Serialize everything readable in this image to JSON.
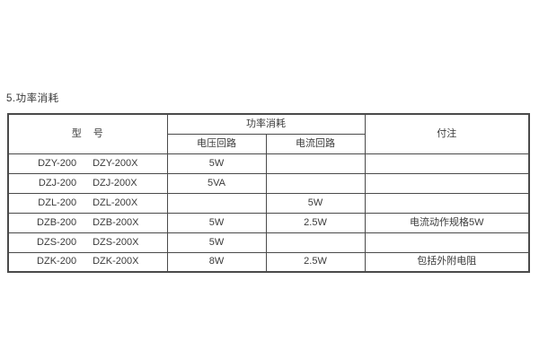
{
  "page": {
    "section_title": "5.功率消耗"
  },
  "table": {
    "header": {
      "model": "型　号",
      "power_group": "功率消耗",
      "voltage_circuit": "电压回路",
      "current_circuit": "电流回路",
      "notes": "付注"
    },
    "rows": [
      {
        "model_a": "DZY-200",
        "model_b": "DZY-200X",
        "voltage": "5W",
        "current": "",
        "note": ""
      },
      {
        "model_a": "DZJ-200",
        "model_b": "DZJ-200X",
        "voltage": "5VA",
        "current": "",
        "note": ""
      },
      {
        "model_a": "DZL-200",
        "model_b": "DZL-200X",
        "voltage": "",
        "current": "5W",
        "note": ""
      },
      {
        "model_a": "DZB-200",
        "model_b": "DZB-200X",
        "voltage": "5W",
        "current": "2.5W",
        "note": "电流动作规格5W"
      },
      {
        "model_a": "DZS-200",
        "model_b": "DZS-200X",
        "voltage": "5W",
        "current": "",
        "note": ""
      },
      {
        "model_a": "DZK-200",
        "model_b": "DZK-200X",
        "voltage": "8W",
        "current": "2.5W",
        "note": "包括外附电阻"
      }
    ]
  }
}
